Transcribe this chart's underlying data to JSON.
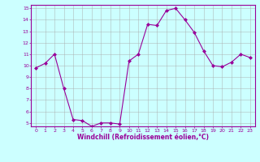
{
  "x": [
    0,
    1,
    2,
    3,
    4,
    5,
    6,
    7,
    8,
    9,
    10,
    11,
    12,
    13,
    14,
    15,
    16,
    17,
    18,
    19,
    20,
    21,
    22,
    23
  ],
  "y": [
    9.8,
    10.2,
    11.0,
    8.0,
    5.3,
    5.2,
    4.7,
    5.0,
    5.0,
    4.9,
    10.4,
    11.0,
    13.6,
    13.5,
    14.8,
    15.0,
    14.0,
    12.9,
    11.3,
    10.0,
    9.9,
    10.3,
    11.0,
    10.7
  ],
  "line_color": "#990099",
  "marker": "D",
  "marker_size": 2.0,
  "bg_color": "#ccffff",
  "grid_color": "#aaaaaa",
  "xlabel": "Windchill (Refroidissement éolien,°C)",
  "xlabel_color": "#990099",
  "tick_color": "#990099",
  "spine_color": "#990099",
  "ylim": [
    5,
    15
  ],
  "yticks": [
    5,
    6,
    7,
    8,
    9,
    10,
    11,
    12,
    13,
    14,
    15
  ],
  "xlim": [
    -0.5,
    23.5
  ],
  "xticks": [
    0,
    1,
    2,
    3,
    4,
    5,
    6,
    7,
    8,
    9,
    10,
    11,
    12,
    13,
    14,
    15,
    16,
    17,
    18,
    19,
    20,
    21,
    22,
    23
  ]
}
